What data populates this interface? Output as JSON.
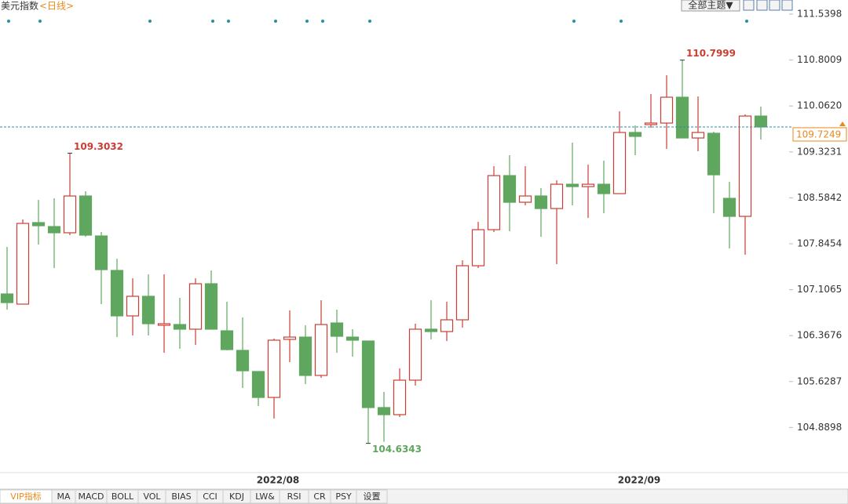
{
  "header": {
    "title": "美元指数",
    "period": "<日线>",
    "theme_button": "全部主题▼"
  },
  "tabs": [
    "VIP指标",
    "MA",
    "MACD",
    "BOLL",
    "VOL",
    "BIAS",
    "CCI",
    "KDJ",
    "LW&",
    "RSI",
    "CR",
    "PSY",
    "设置"
  ],
  "chart_data": {
    "type": "candlestick",
    "categories": [
      null,
      null,
      null,
      null,
      null,
      null,
      null,
      null,
      null,
      null,
      null,
      null,
      null,
      null,
      null,
      null,
      null,
      "2022/08",
      null,
      null,
      null,
      null,
      null,
      null,
      null,
      null,
      null,
      null,
      null,
      null,
      null,
      null,
      null,
      null,
      null,
      null,
      null,
      null,
      null,
      null,
      "2022/09",
      null,
      null,
      null,
      null,
      null,
      null,
      null,
      null
    ],
    "open": [
      107.038,
      106.874,
      108.186,
      108.122,
      108.022,
      108.614,
      107.971,
      107.416,
      106.685,
      107.0,
      106.534,
      106.546,
      106.471,
      107.202,
      106.445,
      106.13,
      105.79,
      105.373,
      106.307,
      106.344,
      105.727,
      106.571,
      106.344,
      106.281,
      105.21,
      105.096,
      105.651,
      106.471,
      106.433,
      106.622,
      107.492,
      108.072,
      108.942,
      108.513,
      108.614,
      108.412,
      108.803,
      108.765,
      108.803,
      108.652,
      109.636,
      109.762,
      109.787,
      110.203,
      109.547,
      109.623,
      108.576,
      108.286,
      109.9
    ],
    "high": [
      107.795,
      108.236,
      108.551,
      108.576,
      109.3032,
      108.69,
      108.034,
      107.605,
      107.29,
      107.353,
      107.353,
      106.975,
      107.29,
      107.416,
      106.912,
      106.66,
      105.79,
      106.319,
      106.773,
      106.534,
      106.937,
      106.786,
      106.471,
      106.281,
      105.462,
      105.84,
      106.559,
      106.937,
      106.912,
      107.58,
      108.198,
      109.093,
      109.27,
      109.093,
      108.74,
      108.866,
      109.472,
      109.119,
      109.182,
      109.976,
      109.749,
      110.254,
      110.556,
      110.7999,
      110.216,
      109.648,
      108.841,
      109.926,
      110.052
    ],
    "low": [
      106.786,
      106.874,
      107.832,
      107.454,
      107.984,
      107.958,
      106.874,
      106.344,
      106.37,
      106.37,
      106.092,
      106.155,
      106.218,
      106.471,
      106.13,
      105.525,
      105.235,
      105.033,
      105.941,
      105.588,
      105.689,
      106.092,
      106.029,
      104.6343,
      104.66,
      105.058,
      105.563,
      106.307,
      106.281,
      106.496,
      107.454,
      108.034,
      108.047,
      108.463,
      107.958,
      107.517,
      108.463,
      108.261,
      108.337,
      108.652,
      109.27,
      109.711,
      109.371,
      109.547,
      109.333,
      108.337,
      107.769,
      107.669,
      109.522
    ],
    "close": [
      106.899,
      108.173,
      108.135,
      108.022,
      108.614,
      107.984,
      107.429,
      106.685,
      107.0,
      106.559,
      106.559,
      106.471,
      107.202,
      106.471,
      106.143,
      105.802,
      105.373,
      106.294,
      106.344,
      105.727,
      106.546,
      106.357,
      106.294,
      105.21,
      105.096,
      105.651,
      106.471,
      106.433,
      106.622,
      107.492,
      108.072,
      108.942,
      108.513,
      108.614,
      108.412,
      108.803,
      108.765,
      108.803,
      108.652,
      109.636,
      109.573,
      109.787,
      110.203,
      109.547,
      109.636,
      108.955,
      108.286,
      109.9,
      109.7249
    ],
    "up_color": "#cc3d33",
    "down_color": "#5fa65f",
    "last_price_color": "#e8891c",
    "ylim": [
      104.163,
      111.767
    ],
    "yticks": [
      111.5398,
      110.8009,
      {
        "value": 110.062,
        "label": "110.0620"
      },
      109.3231,
      108.5842,
      107.8454,
      107.1065,
      106.3676,
      105.6287,
      104.8898
    ]
  }
}
